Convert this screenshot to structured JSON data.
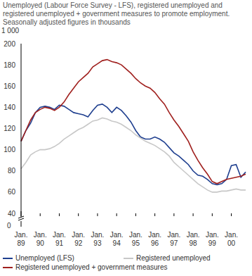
{
  "chart_data": {
    "type": "line",
    "title": "Unemployed (Labour Force Survey - LFS), registered unemployed and registered unemployed + government measures to promote employment. Seasonally adjusted figures in thousands",
    "y_label": "1 000",
    "annotations": [
      "0"
    ],
    "categories": [
      "Jan. 89",
      null,
      null,
      null,
      "Jan. 90",
      null,
      null,
      null,
      "Jan. 91",
      null,
      null,
      null,
      "Jan. 92",
      null,
      null,
      null,
      "Jan. 93",
      null,
      null,
      null,
      "Jan. 94",
      null,
      null,
      null,
      "Jan. 95",
      null,
      null,
      null,
      "Jan. 96",
      null,
      null,
      null,
      "Jan. 97",
      null,
      null,
      null,
      "Jan. 98",
      null,
      null,
      null,
      "Jan. 99",
      null,
      null,
      null,
      "Jan. 00",
      null,
      null,
      null
    ],
    "series": [
      {
        "name": "Unemployed (LFS)",
        "color": "#1f3f8f",
        "values": [
          108,
          118,
          125,
          135,
          140,
          141,
          140,
          138,
          142,
          141,
          138,
          135,
          134,
          133,
          131,
          137,
          142,
          143,
          140,
          135,
          140,
          137,
          132,
          126,
          118,
          112,
          110,
          110,
          112,
          110,
          107,
          102,
          97,
          94,
          90,
          86,
          80,
          76,
          75,
          72,
          68,
          67,
          68,
          72,
          85,
          86,
          74,
          79
        ]
      },
      {
        "name": "Registered unemployed",
        "color": "#c8c8c8",
        "values": [
          82,
          88,
          95,
          98,
          100,
          100,
          101,
          103,
          106,
          110,
          113,
          116,
          119,
          121,
          124,
          127,
          128,
          130,
          129,
          127,
          126,
          124,
          121,
          118,
          114,
          111,
          108,
          106,
          104,
          101,
          98,
          94,
          88,
          84,
          80,
          76,
          72,
          68,
          65,
          62,
          60,
          60,
          61,
          61,
          62,
          63,
          62,
          62
        ]
      },
      {
        "name": "Registered unemployed + government measures",
        "color": "#a0201e",
        "values": [
          108,
          118,
          128,
          135,
          138,
          140,
          139,
          137,
          140,
          145,
          152,
          158,
          164,
          168,
          172,
          178,
          181,
          184,
          185,
          183,
          182,
          180,
          176,
          172,
          167,
          163,
          160,
          158,
          154,
          148,
          143,
          135,
          128,
          122,
          115,
          108,
          98,
          90,
          83,
          77,
          70,
          68,
          70,
          72,
          73,
          74,
          75,
          77
        ]
      }
    ],
    "ylim": [
      40,
      200
    ],
    "yticks": [
      40,
      60,
      80,
      100,
      120,
      140,
      160,
      180,
      200
    ],
    "grid": false,
    "legend": "bottom"
  }
}
